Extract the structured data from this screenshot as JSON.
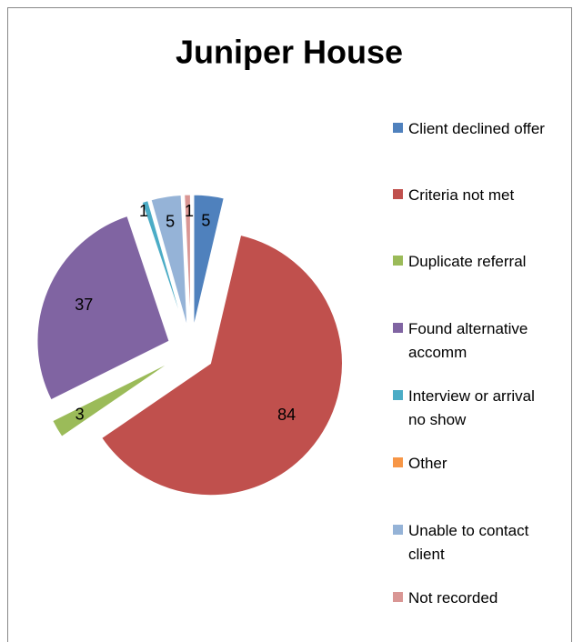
{
  "chart_data": {
    "type": "pie",
    "title": "Juniper House",
    "categories": [
      "Client declined offer",
      "Criteria not met",
      "Duplicate referral",
      "Found alternative accomm",
      "Interview or arrival no show",
      "Other",
      "Unable to contact client",
      "Not recorded"
    ],
    "values": [
      5,
      84,
      3,
      37,
      1,
      0,
      5,
      1
    ],
    "colors": [
      "#4f81bd",
      "#c0504d",
      "#9bbb59",
      "#8064a2",
      "#4bacc6",
      "#f79646",
      "#95b3d7",
      "#d99694"
    ],
    "legend": "right"
  }
}
